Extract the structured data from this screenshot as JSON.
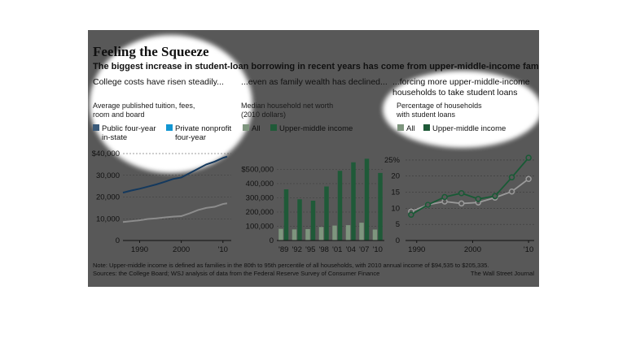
{
  "title": "Feeling the Squeeze",
  "subtitle": "The biggest increase in student-loan borrowing in recent years has come from upper-middle-income families.",
  "headings": {
    "left": "College costs have risen steadily...",
    "middle": "...even as family wealth has declined...",
    "right_line1": "...forcing more upper-middle-income",
    "right_line2": "households to take student loans"
  },
  "colors": {
    "public": "#3a5a7a",
    "private": "#1296d2",
    "all": "#7e957e",
    "upper": "#1f5a38",
    "all_line": "#9a9a9a",
    "upper_line": "#185a35"
  },
  "chart_data": [
    {
      "type": "line",
      "label_lines": [
        "Average published tuition, fees,",
        "room and board"
      ],
      "legend": [
        {
          "name_lines": [
            "Public four-year",
            "in-state"
          ],
          "color": "#3a5a7a"
        },
        {
          "name_lines": [
            "Private nonprofit",
            "four-year"
          ],
          "color": "#1296d2"
        }
      ],
      "x": [
        1986,
        1988,
        1990,
        1992,
        1994,
        1996,
        1998,
        2000,
        2002,
        2004,
        2006,
        2008,
        2010,
        2011
      ],
      "series": [
        {
          "name": "Private nonprofit four-year",
          "color": "#14395e",
          "values": [
            22000,
            23000,
            23800,
            24800,
            25800,
            27000,
            28300,
            29000,
            31000,
            33000,
            35000,
            36300,
            38000,
            38600
          ]
        },
        {
          "name": "Public four-year in-state",
          "color": "#8c8c8c",
          "values": [
            8500,
            8900,
            9300,
            9900,
            10200,
            10600,
            11000,
            11200,
            12500,
            14000,
            15000,
            15500,
            16800,
            17100
          ]
        }
      ],
      "xticks": [
        "1990",
        "2000",
        "'10"
      ],
      "xtick_values": [
        1990,
        2000,
        2010
      ],
      "xlim": [
        1986,
        2012
      ],
      "yticks": [
        "$40,000",
        "30,000",
        "20,000",
        "10,000",
        "0"
      ],
      "ytick_values": [
        40000,
        30000,
        20000,
        10000,
        0
      ],
      "ylim": [
        0,
        40000
      ]
    },
    {
      "type": "bar",
      "label_lines": [
        "Median household net worth",
        "(2010 dollars)"
      ],
      "legend": [
        {
          "name": "All",
          "color": "#7e957e"
        },
        {
          "name": "Upper-middle income",
          "color": "#1f5a38"
        }
      ],
      "categories": [
        "'89",
        "'92",
        "'95",
        "'98",
        "'01",
        "'04",
        "'07",
        "'10"
      ],
      "series": [
        {
          "name": "All",
          "values": [
            82000,
            78000,
            80000,
            95000,
            105000,
            108000,
            125000,
            77000
          ]
        },
        {
          "name": "Upper-middle income",
          "values": [
            360000,
            290000,
            280000,
            380000,
            490000,
            550000,
            575000,
            475000
          ]
        }
      ],
      "yticks": [
        "$500,000",
        "400,000",
        "300,000",
        "200,000",
        "100,000",
        "0"
      ],
      "ytick_values": [
        500000,
        400000,
        300000,
        200000,
        100000,
        0
      ],
      "ylim": [
        0,
        600000
      ]
    },
    {
      "type": "line",
      "label_lines": [
        "Percentage of households",
        "with student loans"
      ],
      "legend": [
        {
          "name": "All",
          "color": "#7e957e"
        },
        {
          "name": "Upper-middle income",
          "color": "#1f5a38"
        }
      ],
      "x": [
        1989,
        1992,
        1995,
        1998,
        2001,
        2004,
        2007,
        2010
      ],
      "series": [
        {
          "name": "All",
          "color": "#9a9a9a",
          "values": [
            9,
            11.1,
            12.1,
            11.5,
            11.8,
            13.3,
            15.2,
            19.1
          ]
        },
        {
          "name": "Upper-middle income",
          "color": "#185a35",
          "values": [
            8,
            11.1,
            13.5,
            14.7,
            12.9,
            13.8,
            19.6,
            25.7
          ]
        }
      ],
      "xticks": [
        "1990",
        "2000",
        "'10"
      ],
      "xtick_values": [
        1990,
        2000,
        2010
      ],
      "xlim": [
        1988,
        2011
      ],
      "yticks": [
        "25%",
        "20",
        "15",
        "10",
        "5",
        "0"
      ],
      "ytick_values": [
        25,
        20,
        15,
        10,
        5,
        0
      ],
      "ylim": [
        0,
        28
      ]
    }
  ],
  "footer": {
    "note": "Note: Upper-middle income is defined as families in the 80th to 95th percentile of all households, with 2010 annual income of $94,535 to $205,335.",
    "sources": "Sources: the College Board; WSJ analysis of data from the Federal Reserve Survey of Consumer Finance",
    "credit": "The Wall Street Journal"
  }
}
